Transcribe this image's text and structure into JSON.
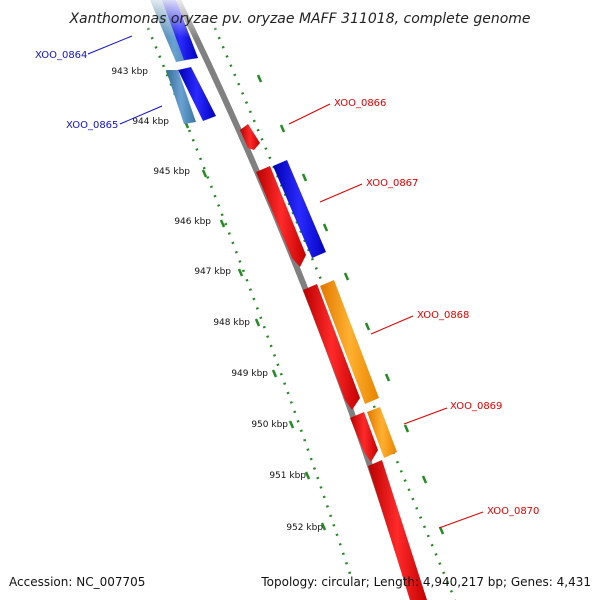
{
  "header": {
    "title": "Xanthomonas oryzae pv. oryzae MAFF 311018, complete genome"
  },
  "footer": {
    "accession": "Accession: NC_007705",
    "summary": "Topology: circular; Length: 4,940,217 bp; Genes: 4,431"
  },
  "ticks": [
    "943 kbp",
    "944 kbp",
    "945 kbp",
    "946 kbp",
    "947 kbp",
    "948 kbp",
    "949 kbp",
    "950 kbp",
    "951 kbp",
    "952 kbp"
  ],
  "genes": [
    {
      "id": "XOO_0864",
      "strand": "forward"
    },
    {
      "id": "XOO_0865",
      "strand": "forward"
    },
    {
      "id": "XOO_0866",
      "strand": "reverse"
    },
    {
      "id": "XOO_0867",
      "strand": "reverse"
    },
    {
      "id": "XOO_0868",
      "strand": "reverse"
    },
    {
      "id": "XOO_0869",
      "strand": "reverse"
    },
    {
      "id": "XOO_0870",
      "strand": "reverse"
    }
  ],
  "colors": {
    "forward_label": "#1010cc",
    "reverse_label": "#dd0000",
    "forward_gene": "#0000ee",
    "reverse_gene": "#ee0000",
    "orange_gene": "#ff9900",
    "steelblue_gene": "#4682b4",
    "backbone": "#808080",
    "tick_dots": "#228b22"
  }
}
